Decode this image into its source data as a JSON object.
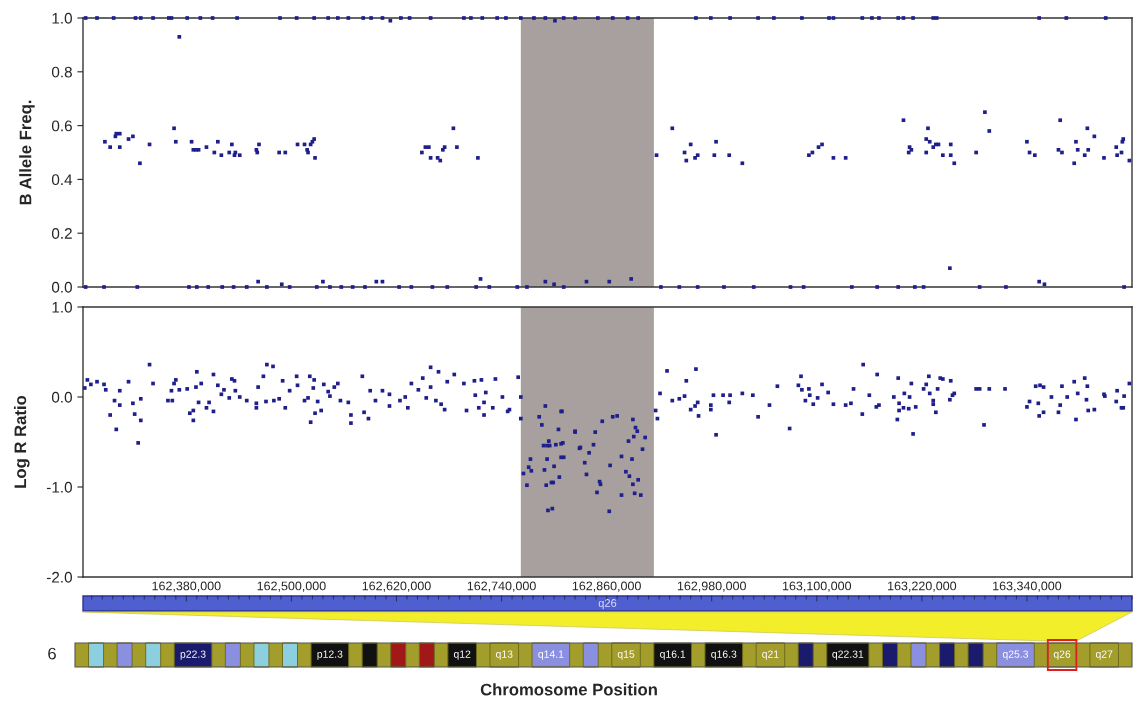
{
  "chart_data": [
    {
      "type": "scatter",
      "ylabel": "B Allele Freq.",
      "color": "#1f1f8c",
      "marker": "square",
      "tick_labels": "y",
      "xlim": [
        162262000,
        163460000
      ],
      "ylim": [
        0,
        1
      ],
      "yticks": [
        {
          "value": 0,
          "label": "0.0"
        },
        {
          "value": 0.2,
          "label": "0.2"
        },
        {
          "value": 0.4,
          "label": "0.4"
        },
        {
          "value": 0.6,
          "label": "0.6"
        },
        {
          "value": 0.8,
          "label": "0.8"
        },
        {
          "value": 1,
          "label": "1.0"
        }
      ],
      "bands": [
        {
          "axis": "x",
          "from": 162762000,
          "to": 162914000,
          "color": "#a8a09f"
        }
      ],
      "x": [
        162287000,
        162293000,
        162299000,
        162300000,
        162304000,
        162304000,
        162314000,
        162319000,
        162327000,
        162338000,
        162366000,
        162368000,
        162372000,
        162386000,
        162388000,
        162391000,
        162394000,
        162403000,
        162412000,
        162416000,
        162420000,
        162429000,
        162432000,
        162435000,
        162436000,
        162441000,
        162460000,
        162461000,
        162463000,
        162486000,
        162493000,
        162507000,
        162515000,
        162518000,
        162519000,
        162522000,
        162524000,
        162526000,
        162527000,
        162649000,
        162653000,
        162657000,
        162659000,
        162667000,
        162670000,
        162673000,
        162675000,
        162685000,
        162689000,
        162713000,
        162917000,
        162935000,
        162949000,
        162951000,
        162956000,
        162961000,
        162964000,
        162983000,
        162985000,
        163000000,
        163015000,
        163091000,
        163095000,
        163102000,
        163106000,
        163119000,
        163133000,
        163199000,
        163205000,
        163206000,
        163208000,
        163225000,
        163225000,
        163227000,
        163229000,
        163233000,
        163236000,
        163239000,
        163244000,
        163252000,
        163253000,
        163253000,
        163257000,
        163282000,
        163292000,
        163297000,
        163340000,
        163343000,
        163349000,
        163376000,
        163378000,
        163380000,
        163394000,
        163396000,
        163398000,
        163406000,
        163409000,
        163410000,
        163417000,
        163428000,
        163442000,
        163443000,
        163448000,
        163449000,
        163450000,
        163457000,
        162265000,
        162278000,
        162297000,
        162322000,
        162328000,
        162342000,
        162360000,
        162363000,
        162381000,
        162396000,
        162410000,
        162438000,
        162487000,
        162506000,
        162526000,
        162542000,
        162553000,
        162565000,
        162582000,
        162591000,
        162604000,
        162613000,
        162625000,
        162635000,
        162659000,
        162697000,
        162705000,
        162718000,
        162735000,
        162745000,
        162762000,
        162777000,
        162790000,
        162801000,
        162811000,
        162824000,
        162850000,
        162867000,
        162884000,
        162896000,
        162962000,
        162979000,
        163001000,
        163033000,
        163051000,
        163083000,
        163114000,
        163119000,
        163152000,
        163163000,
        163171000,
        163193000,
        163199000,
        163210000,
        163233000,
        163237000,
        163354000,
        163385000,
        163430000,
        162265000,
        162286000,
        162324000,
        162383000,
        162392000,
        162405000,
        162421000,
        162434000,
        162449000,
        162462000,
        162472000,
        162489000,
        162498000,
        162529000,
        162536000,
        162544000,
        162557000,
        162570000,
        162584000,
        162597000,
        162604000,
        162623000,
        162637000,
        162661000,
        162678000,
        162711000,
        162716000,
        162726000,
        162758000,
        162769000,
        162790000,
        162800000,
        162811000,
        162837000,
        162863000,
        162888000,
        162922000,
        162943000,
        162964000,
        162994000,
        163028000,
        163070000,
        163085000,
        163140000,
        163169000,
        163193000,
        163212000,
        163222000,
        163286000,
        163316000,
        163354000,
        163360000,
        163451000
      ],
      "values": [
        0.54,
        0.52,
        0.56,
        0.57,
        0.57,
        0.52,
        0.55,
        0.56,
        0.46,
        0.53,
        0.59,
        0.54,
        0.93,
        0.54,
        0.51,
        0.51,
        0.51,
        0.52,
        0.5,
        0.54,
        0.49,
        0.5,
        0.53,
        0.49,
        0.5,
        0.49,
        0.51,
        0.5,
        0.53,
        0.5,
        0.5,
        0.53,
        0.53,
        0.51,
        0.5,
        0.53,
        0.54,
        0.55,
        0.48,
        0.5,
        0.52,
        0.52,
        0.48,
        0.48,
        0.47,
        0.51,
        0.52,
        0.59,
        0.52,
        0.48,
        0.49,
        0.59,
        0.5,
        0.47,
        0.53,
        0.48,
        0.49,
        0.49,
        0.54,
        0.49,
        0.46,
        0.49,
        0.5,
        0.52,
        0.53,
        0.48,
        0.48,
        0.62,
        0.5,
        0.52,
        0.51,
        0.5,
        0.55,
        0.59,
        0.54,
        0.52,
        0.53,
        0.53,
        0.49,
        0.07,
        0.53,
        0.49,
        0.46,
        0.5,
        0.65,
        0.58,
        0.54,
        0.5,
        0.49,
        0.51,
        0.62,
        0.5,
        0.46,
        0.54,
        0.51,
        0.49,
        0.59,
        0.51,
        0.56,
        0.48,
        0.52,
        0.49,
        0.5,
        0.54,
        0.55,
        0.47,
        1,
        1,
        1,
        1,
        1,
        1,
        1,
        1,
        1,
        1,
        1,
        1,
        1,
        1,
        1,
        1,
        1,
        1,
        1,
        1,
        1,
        0.99,
        1,
        1,
        1,
        1,
        1,
        1,
        1,
        1,
        1,
        1,
        1,
        0.99,
        1,
        1,
        1,
        1,
        1,
        1,
        1,
        1,
        1,
        1,
        1,
        1,
        1,
        1,
        1,
        1,
        1,
        1,
        1,
        1,
        1,
        1,
        1,
        1,
        1,
        0,
        0,
        0,
        0,
        0,
        0,
        0,
        0,
        0,
        0.02,
        0,
        0.01,
        0,
        0,
        0.02,
        0,
        0,
        0,
        0,
        0.02,
        0.02,
        0,
        0,
        0,
        0,
        0,
        0.03,
        0,
        0,
        0,
        0.02,
        0.01,
        0,
        0.02,
        0.02,
        0.03,
        0,
        0,
        0,
        0,
        0,
        0,
        0,
        0,
        0,
        0,
        0,
        0,
        0,
        0,
        0.02,
        0.01,
        0
      ]
    },
    {
      "type": "scatter",
      "ylabel": "Log R Ratio",
      "color": "#1f1f8c",
      "marker": "square",
      "xlim": [
        162262000,
        163460000
      ],
      "ylim": [
        -2,
        1
      ],
      "xticks": [
        {
          "value": 162380000,
          "label": "162,380,000"
        },
        {
          "value": 162500000,
          "label": "162,500,000"
        },
        {
          "value": 162620000,
          "label": "162,620,000"
        },
        {
          "value": 162740000,
          "label": "162,740,000"
        },
        {
          "value": 162860000,
          "label": "162,860,000"
        },
        {
          "value": 162980000,
          "label": "162,980,000"
        },
        {
          "value": 163100000,
          "label": "163,100,000"
        },
        {
          "value": 163220000,
          "label": "163,220,000"
        },
        {
          "value": 163340000,
          "label": "163,340,000"
        }
      ],
      "yticks": [
        {
          "value": -2,
          "label": "-2.0"
        },
        {
          "value": -1,
          "label": "-1.0"
        },
        {
          "value": 0,
          "label": "0.0"
        },
        {
          "value": 1,
          "label": "1.0"
        }
      ],
      "bands": [
        {
          "axis": "x",
          "from": 162762000,
          "to": 162914000,
          "color": "#a8a09f"
        }
      ],
      "x": [
        162264000,
        162267000,
        162271000,
        162278000,
        162286000,
        162288000,
        162293000,
        162298000,
        162300000,
        162304000,
        162304000,
        162314000,
        162319000,
        162321000,
        162325000,
        162328000,
        162328000,
        162338000,
        162342000,
        162359000,
        162363000,
        162364000,
        162366000,
        162368000,
        162372000,
        162381000,
        162384000,
        162388000,
        162388000,
        162391000,
        162392000,
        162394000,
        162397000,
        162403000,
        162406000,
        162411000,
        162411000,
        162416000,
        162420000,
        162423000,
        162429000,
        162432000,
        162435000,
        162436000,
        162441000,
        162449000,
        162460000,
        162460000,
        162462000,
        162468000,
        162471000,
        162472000,
        162479000,
        162480000,
        162486000,
        162490000,
        162493000,
        162498000,
        162506000,
        162507000,
        162515000,
        162519000,
        162521000,
        162522000,
        162525000,
        162526000,
        162527000,
        162530000,
        162534000,
        162537000,
        162542000,
        162544000,
        162549000,
        162553000,
        162556000,
        162565000,
        162568000,
        162568000,
        162581000,
        162583000,
        162588000,
        162590000,
        162596000,
        162604000,
        162612000,
        162612000,
        162624000,
        162630000,
        162633000,
        162637000,
        162645000,
        162650000,
        162654000,
        162659000,
        162659000,
        162665000,
        162668000,
        162671000,
        162675000,
        162678000,
        162686000,
        162697000,
        162700000,
        162709000,
        162710000,
        162714000,
        162717000,
        162720000,
        162720000,
        162722000,
        162730000,
        162733000,
        162741000,
        162747000,
        162749000,
        162759000,
        162762000,
        162762000,
        162765000,
        162769000,
        162771000,
        162773000,
        162774000,
        162783000,
        162786000,
        162788000,
        162789000,
        162790000,
        162791000,
        162792000,
        162792000,
        162793000,
        162794000,
        162795000,
        162797000,
        162798000,
        162799000,
        162800000,
        162802000,
        162805000,
        162806000,
        162809000,
        162810000,
        162811000,
        162824000,
        162830000,
        162808000,
        162808000,
        162808000,
        162824000,
        162829000,
        162835000,
        162837000,
        162840000,
        162845000,
        162847000,
        162849000,
        162852000,
        162853000,
        162855000,
        162863000,
        162864000,
        162867000,
        162872000,
        162877000,
        162877000,
        162882000,
        162885000,
        162886000,
        162889000,
        162890000,
        162890000,
        162891000,
        162892000,
        162893000,
        162895000,
        162896000,
        162899000,
        162901000,
        162904000,
        162916000,
        162918000,
        162921000,
        162929000,
        162935000,
        162943000,
        162949000,
        162951000,
        162956000,
        162961000,
        162962000,
        162964000,
        162965000,
        162979000,
        162979000,
        162982000,
        162985000,
        162993000,
        163000000,
        163001000,
        163015000,
        163027000,
        163033000,
        163046000,
        163055000,
        163069000,
        163079000,
        163082000,
        163083000,
        163087000,
        163091000,
        163092000,
        163096000,
        163101000,
        163106000,
        163113000,
        163119000,
        163133000,
        163139000,
        163142000,
        163152000,
        163153000,
        163160000,
        163168000,
        163169000,
        163171000,
        163188000,
        163192000,
        163193000,
        163194000,
        163194000,
        163199000,
        163200000,
        163205000,
        163206000,
        163208000,
        163210000,
        163213000,
        163222000,
        163225000,
        163228000,
        163229000,
        163233000,
        163233000,
        163236000,
        163238000,
        163241000,
        163244000,
        163252000,
        163253000,
        163255000,
        163257000,
        163282000,
        163286000,
        163291000,
        163297000,
        163315000,
        163340000,
        163343000,
        163350000,
        163353000,
        163354000,
        163355000,
        163359000,
        163359000,
        163368000,
        163376000,
        163378000,
        163380000,
        163386000,
        163394000,
        163396000,
        163398000,
        163406000,
        163408000,
        163409000,
        163410000,
        163417000,
        163428000,
        163429000,
        163442000,
        163443000,
        163448000,
        163450000,
        163451000,
        163457000
      ],
      "values": [
        0.1,
        0.19,
        0.14,
        0.17,
        0.14,
        0.08,
        -0.2,
        -0.04,
        -0.36,
        0.07,
        -0.09,
        0.17,
        -0.07,
        -0.19,
        -0.51,
        -0.02,
        -0.26,
        0.36,
        0.15,
        -0.04,
        0.07,
        -0.04,
        0.15,
        0.19,
        0.08,
        0.09,
        -0.18,
        -0.26,
        -0.15,
        0.11,
        0.28,
        -0.06,
        0.15,
        -0.12,
        -0.06,
        0.25,
        -0.16,
        0.13,
        0.03,
        0.08,
        -0.01,
        0.2,
        0.18,
        0.07,
        0.0,
        -0.04,
        -0.12,
        -0.07,
        0.11,
        0.23,
        -0.05,
        0.36,
        0.34,
        -0.04,
        -0.02,
        0.18,
        -0.12,
        0.07,
        0.23,
        0.13,
        -0.04,
        -0.01,
        0.23,
        -0.28,
        0.1,
        0.19,
        -0.18,
        -0.05,
        -0.15,
        0.14,
        0.06,
        0.01,
        0.11,
        0.15,
        -0.04,
        -0.06,
        -0.29,
        -0.2,
        0.23,
        -0.17,
        -0.24,
        0.07,
        -0.04,
        0.07,
        0.03,
        -0.1,
        -0.04,
        0.0,
        -0.12,
        0.15,
        0.08,
        0.21,
        -0.01,
        0.11,
        0.33,
        -0.04,
        0.28,
        -0.08,
        -0.14,
        0.17,
        0.25,
        0.15,
        -0.15,
        0.18,
        0.02,
        -0.12,
        0.19,
        -0.2,
        -0.06,
        0.05,
        -0.12,
        0.2,
        0.0,
        -0.16,
        -0.14,
        0.22,
        -0.24,
        0.0,
        -0.85,
        -0.98,
        -0.78,
        -0.69,
        -0.82,
        -0.22,
        -0.31,
        -0.54,
        -0.81,
        -0.1,
        -0.98,
        -0.54,
        -0.69,
        -1.26,
        -0.49,
        -0.54,
        -0.95,
        -1.24,
        -0.95,
        -0.77,
        -0.53,
        -0.36,
        -0.89,
        -0.16,
        -0.51,
        -0.67,
        -0.38,
        -0.56,
        -0.16,
        -0.52,
        -0.67,
        -0.39,
        -0.57,
        -0.73,
        -0.86,
        -0.62,
        -0.53,
        -0.39,
        -1.06,
        -0.94,
        -0.97,
        -0.27,
        -1.27,
        -0.76,
        -0.22,
        -0.21,
        -0.66,
        -1.09,
        -0.83,
        -0.49,
        -0.88,
        -0.69,
        -0.97,
        -0.25,
        -0.44,
        -1.07,
        -0.34,
        -0.38,
        -0.92,
        -1.09,
        -0.58,
        -0.45,
        -0.15,
        -0.24,
        0.04,
        0.29,
        -0.04,
        -0.02,
        0.01,
        0.18,
        -0.14,
        -0.1,
        0.31,
        -0.06,
        -0.21,
        -0.09,
        -0.14,
        0.02,
        -0.42,
        0.02,
        -0.06,
        0.02,
        0.04,
        0.02,
        -0.22,
        -0.09,
        0.12,
        -0.35,
        0.13,
        0.23,
        0.08,
        -0.04,
        0.09,
        0.02,
        -0.08,
        -0.01,
        0.14,
        0.05,
        -0.08,
        -0.09,
        -0.07,
        0.09,
        -0.19,
        0.36,
        0.02,
        -0.11,
        0.25,
        -0.09,
        0.0,
        -0.25,
        0.21,
        -0.07,
        -0.15,
        -0.12,
        0.04,
        -0.13,
        0.0,
        0.15,
        -0.41,
        -0.11,
        0.09,
        0.14,
        0.23,
        0.04,
        -0.04,
        -0.08,
        -0.17,
        0.09,
        0.21,
        0.2,
        -0.03,
        0.18,
        0.02,
        0.04,
        0.09,
        0.09,
        -0.31,
        0.09,
        0.09,
        -0.11,
        -0.05,
        0.12,
        -0.07,
        -0.21,
        0.13,
        0.11,
        -0.17,
        0.0,
        -0.17,
        -0.09,
        0.12,
        0.0,
        0.17,
        -0.25,
        0.04,
        0.21,
        -0.03,
        0.12,
        -0.15,
        -0.14,
        0.03,
        0.01,
        -0.05,
        0.07,
        -0.12,
        -0.12,
        0.01,
        0.15
      ]
    },
    {
      "type": "other",
      "title": "6",
      "xlabel": "Chromosome Position",
      "needle": "q26",
      "categories": [
        null,
        null,
        null,
        "p22.3",
        null,
        null,
        null,
        "p12.3",
        null,
        null,
        null,
        "q12",
        "q13",
        "q14.1",
        null,
        "q15",
        "q16.1",
        "q16.3",
        "q21",
        null,
        "q22.31",
        null,
        null,
        null,
        null,
        "q25.3",
        "q26",
        "q27"
      ],
      "colors": [
        "#8ccfdf",
        "#8b8fe0",
        "#8ccfdf",
        "#1b1b6e",
        "#8b8fe0",
        "#8ccfdf",
        "#8ccfdf",
        "#111111",
        "#111111",
        "#a01818",
        "#a01818",
        "#111111",
        "#a39d2c",
        "#8b8fe0",
        "#8b8fe0",
        "#a39d2c",
        "#111111",
        "#111111",
        "#a39d2c",
        "#1b1b6e",
        "#111111",
        "#1b1b6e",
        "#8b8fe0",
        "#1b1b6e",
        "#1b1b6e",
        "#8b8fe0",
        "#a39d2c",
        "#a39d2c"
      ]
    }
  ]
}
